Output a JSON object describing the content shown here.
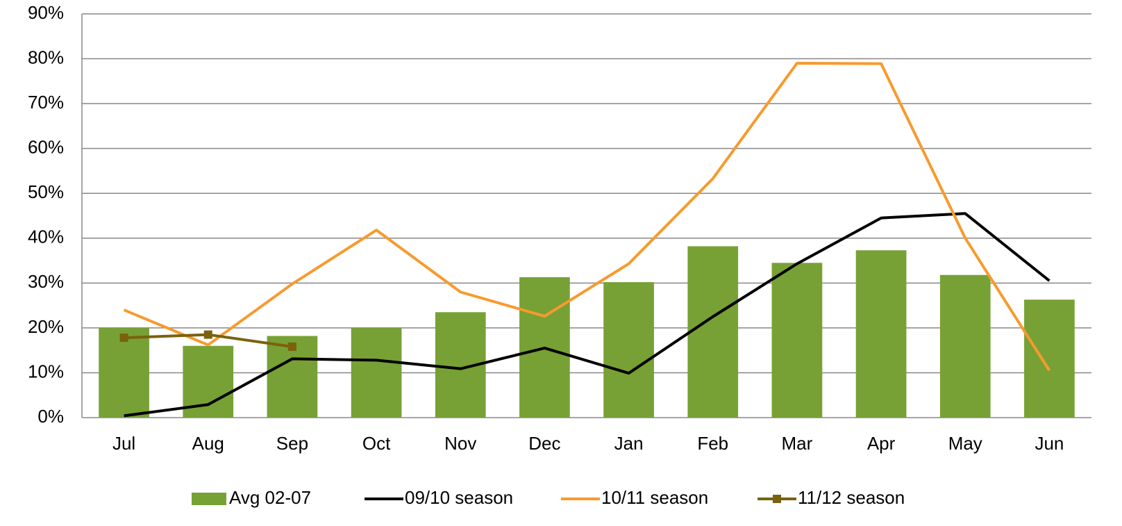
{
  "chart_data": {
    "type": "bar_line",
    "categories": [
      "Jul",
      "Aug",
      "Sep",
      "Oct",
      "Nov",
      "Dec",
      "Jan",
      "Feb",
      "Mar",
      "Apr",
      "May",
      "Jun"
    ],
    "series": [
      {
        "name": "Avg 02-07",
        "type": "bar",
        "color": "#77a135",
        "values": [
          20,
          16,
          18.2,
          20,
          23.5,
          31.3,
          30.2,
          38.2,
          34.5,
          37.3,
          31.8,
          26.3
        ]
      },
      {
        "name": "09/10 season",
        "type": "line",
        "color": "#000000",
        "values": [
          0.4,
          2.9,
          13.1,
          12.8,
          10.9,
          15.5,
          9.9,
          22.5,
          34.3,
          44.5,
          45.5,
          30.5
        ]
      },
      {
        "name": "10/11 season",
        "type": "line",
        "color": "#f79a2e",
        "values": [
          24,
          16.2,
          29.8,
          41.8,
          28,
          22.6,
          34.3,
          53.3,
          79,
          78.9,
          40,
          10.5
        ]
      },
      {
        "name": "11/12 season",
        "type": "line",
        "color": "#7a620d",
        "marker": "square",
        "values": [
          17.8,
          18.5,
          15.8,
          null,
          null,
          null,
          null,
          null,
          null,
          null,
          null,
          null
        ]
      }
    ],
    "ylim": [
      0,
      90
    ],
    "yticks": [
      {
        "value": 0,
        "label": "0%"
      },
      {
        "value": 10,
        "label": "10%"
      },
      {
        "value": 20,
        "label": "20%"
      },
      {
        "value": 30,
        "label": "30%"
      },
      {
        "value": 40,
        "label": "40%"
      },
      {
        "value": 50,
        "label": "50%"
      },
      {
        "value": 60,
        "label": "60%"
      },
      {
        "value": 70,
        "label": "70%"
      },
      {
        "value": 80,
        "label": "80%"
      },
      {
        "value": 90,
        "label": "90%"
      }
    ],
    "grid": true,
    "legend": "bottom"
  }
}
